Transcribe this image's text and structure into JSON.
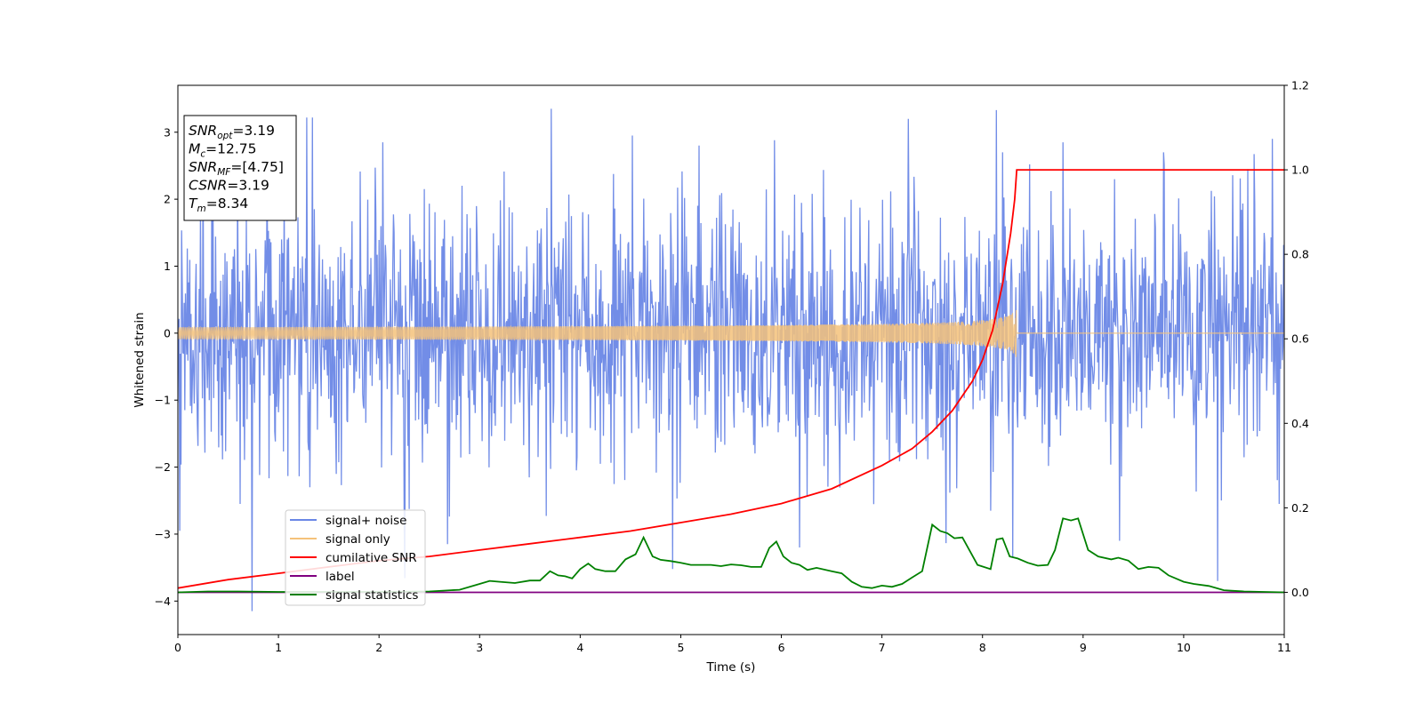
{
  "chart_data": {
    "type": "line",
    "xlabel": "Time (s)",
    "ylabel": "Whitened strain",
    "xlim": [
      0,
      11
    ],
    "ylim": [
      -4.5,
      3.7
    ],
    "y2lim": [
      -0.1,
      1.2
    ],
    "x_ticks": [
      0,
      1,
      2,
      3,
      4,
      5,
      6,
      7,
      8,
      9,
      10,
      11
    ],
    "y_ticks": [
      -4,
      -3,
      -2,
      -1,
      0,
      1,
      2,
      3
    ],
    "y_tick_labels": [
      "−4",
      "−3",
      "−2",
      "−1",
      "0",
      "1",
      "2",
      "3"
    ],
    "y2_ticks": [
      0.0,
      0.2,
      0.4,
      0.6,
      0.8,
      1.0,
      1.2
    ],
    "y2_tick_labels": [
      "0.0",
      "0.2",
      "0.4",
      "0.6",
      "0.8",
      "1.0",
      "1.2"
    ],
    "grid": false,
    "legend_position": "lower-left",
    "annotation": {
      "lines": [
        {
          "base": "SNR",
          "sub": "opt",
          "rest": "=3.19"
        },
        {
          "base": "M",
          "sub": "c",
          "rest": "=12.75"
        },
        {
          "base": "SNR",
          "sub": "MF",
          "rest": "=[4.75]"
        },
        {
          "base": "CSNR",
          "sub": "",
          "rest": "=3.19"
        },
        {
          "base": "T",
          "sub": "m",
          "rest": "=8.34"
        }
      ]
    },
    "series": [
      {
        "name": "signal+ noise",
        "axis": "left",
        "color": "#6a87e6",
        "kind": "noise",
        "sigma": 0.95,
        "clip": [
          -4.2,
          3.35
        ],
        "samples_per_second": 160,
        "extremes": [
          {
            "x": 0.02,
            "y": -2.95
          },
          {
            "x": 0.74,
            "y": -4.15
          },
          {
            "x": 0.62,
            "y": -2.55
          },
          {
            "x": 1.28,
            "y": 3.22
          },
          {
            "x": 1.34,
            "y": 3.22
          },
          {
            "x": 1.31,
            "y": -2.3
          },
          {
            "x": 2.04,
            "y": 2.85
          },
          {
            "x": 2.25,
            "y": -2.95
          },
          {
            "x": 2.68,
            "y": -3.15
          },
          {
            "x": 4.52,
            "y": 2.95
          },
          {
            "x": 5.18,
            "y": 2.8
          },
          {
            "x": 5.93,
            "y": 2.88
          },
          {
            "x": 6.18,
            "y": -3.2
          },
          {
            "x": 7.26,
            "y": 3.2
          },
          {
            "x": 8.08,
            "y": -2.65
          },
          {
            "x": 8.14,
            "y": 3.33
          },
          {
            "x": 8.2,
            "y": 2.7
          },
          {
            "x": 8.3,
            "y": -3.35
          },
          {
            "x": 8.8,
            "y": 2.85
          },
          {
            "x": 9.36,
            "y": -3.1
          },
          {
            "x": 9.8,
            "y": 2.7
          },
          {
            "x": 10.34,
            "y": -3.7
          },
          {
            "x": 10.64,
            "y": 2.45
          },
          {
            "x": 10.88,
            "y": 2.9
          },
          {
            "x": 10.95,
            "y": -2.55
          }
        ]
      },
      {
        "name": "signal only",
        "axis": "left",
        "color": "#f5c27a",
        "kind": "chirp",
        "merger_time": 8.34,
        "peak_amplitude": 0.4
      },
      {
        "name": "cumilative SNR",
        "axis": "right",
        "color": "#ff0000",
        "points": [
          [
            0,
            0.01
          ],
          [
            0.5,
            0.03
          ],
          [
            1,
            0.045
          ],
          [
            1.5,
            0.06
          ],
          [
            2,
            0.075
          ],
          [
            2.5,
            0.085
          ],
          [
            3,
            0.1
          ],
          [
            3.5,
            0.115
          ],
          [
            4,
            0.13
          ],
          [
            4.5,
            0.145
          ],
          [
            5,
            0.165
          ],
          [
            5.5,
            0.185
          ],
          [
            6,
            0.21
          ],
          [
            6.5,
            0.245
          ],
          [
            7,
            0.3
          ],
          [
            7.3,
            0.34
          ],
          [
            7.5,
            0.38
          ],
          [
            7.7,
            0.43
          ],
          [
            7.9,
            0.5
          ],
          [
            8.0,
            0.55
          ],
          [
            8.1,
            0.62
          ],
          [
            8.2,
            0.73
          ],
          [
            8.28,
            0.85
          ],
          [
            8.32,
            0.93
          ],
          [
            8.34,
            1.0
          ],
          [
            11,
            1.0
          ]
        ]
      },
      {
        "name": "label",
        "axis": "right",
        "color": "#800080",
        "points": [
          [
            0,
            0.0
          ],
          [
            11,
            0.0
          ]
        ]
      },
      {
        "name": "signal statistics",
        "axis": "right",
        "color": "#008000",
        "points": [
          [
            0,
            0.0
          ],
          [
            0.3,
            0.002
          ],
          [
            0.6,
            0.002
          ],
          [
            1.0,
            0.001
          ],
          [
            1.5,
            0.001
          ],
          [
            2.0,
            0.001
          ],
          [
            2.5,
            0.002
          ],
          [
            2.8,
            0.006
          ],
          [
            3.0,
            0.02
          ],
          [
            3.1,
            0.027
          ],
          [
            3.2,
            0.025
          ],
          [
            3.35,
            0.022
          ],
          [
            3.5,
            0.028
          ],
          [
            3.6,
            0.028
          ],
          [
            3.7,
            0.05
          ],
          [
            3.78,
            0.04
          ],
          [
            3.85,
            0.038
          ],
          [
            3.92,
            0.033
          ],
          [
            4.0,
            0.055
          ],
          [
            4.08,
            0.068
          ],
          [
            4.15,
            0.055
          ],
          [
            4.25,
            0.05
          ],
          [
            4.35,
            0.05
          ],
          [
            4.45,
            0.078
          ],
          [
            4.55,
            0.09
          ],
          [
            4.63,
            0.13
          ],
          [
            4.72,
            0.085
          ],
          [
            4.8,
            0.077
          ],
          [
            4.9,
            0.074
          ],
          [
            5.0,
            0.07
          ],
          [
            5.1,
            0.065
          ],
          [
            5.3,
            0.065
          ],
          [
            5.4,
            0.062
          ],
          [
            5.5,
            0.066
          ],
          [
            5.6,
            0.064
          ],
          [
            5.7,
            0.06
          ],
          [
            5.8,
            0.06
          ],
          [
            5.88,
            0.105
          ],
          [
            5.95,
            0.12
          ],
          [
            6.02,
            0.085
          ],
          [
            6.1,
            0.07
          ],
          [
            6.18,
            0.065
          ],
          [
            6.26,
            0.053
          ],
          [
            6.35,
            0.058
          ],
          [
            6.5,
            0.05
          ],
          [
            6.6,
            0.045
          ],
          [
            6.7,
            0.025
          ],
          [
            6.8,
            0.013
          ],
          [
            6.9,
            0.01
          ],
          [
            7.0,
            0.016
          ],
          [
            7.1,
            0.013
          ],
          [
            7.2,
            0.02
          ],
          [
            7.3,
            0.035
          ],
          [
            7.4,
            0.05
          ],
          [
            7.5,
            0.16
          ],
          [
            7.58,
            0.145
          ],
          [
            7.65,
            0.14
          ],
          [
            7.72,
            0.128
          ],
          [
            7.8,
            0.13
          ],
          [
            7.95,
            0.065
          ],
          [
            8.08,
            0.055
          ],
          [
            8.14,
            0.125
          ],
          [
            8.2,
            0.128
          ],
          [
            8.27,
            0.085
          ],
          [
            8.35,
            0.08
          ],
          [
            8.45,
            0.07
          ],
          [
            8.55,
            0.063
          ],
          [
            8.65,
            0.065
          ],
          [
            8.72,
            0.1
          ],
          [
            8.8,
            0.175
          ],
          [
            8.88,
            0.17
          ],
          [
            8.95,
            0.175
          ],
          [
            9.05,
            0.1
          ],
          [
            9.15,
            0.085
          ],
          [
            9.28,
            0.078
          ],
          [
            9.35,
            0.082
          ],
          [
            9.45,
            0.075
          ],
          [
            9.55,
            0.055
          ],
          [
            9.65,
            0.06
          ],
          [
            9.75,
            0.058
          ],
          [
            9.85,
            0.04
          ],
          [
            10.0,
            0.025
          ],
          [
            10.1,
            0.02
          ],
          [
            10.25,
            0.015
          ],
          [
            10.4,
            0.005
          ],
          [
            10.6,
            0.002
          ],
          [
            11,
            0.0
          ]
        ]
      }
    ]
  }
}
